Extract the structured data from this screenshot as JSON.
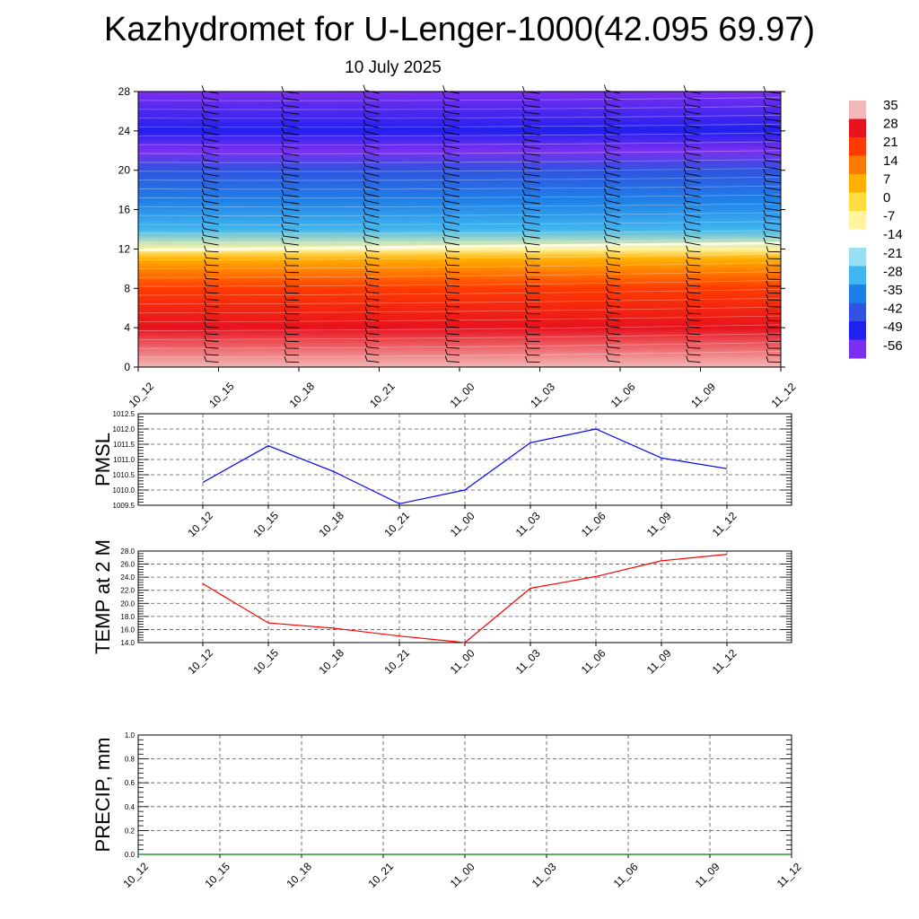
{
  "title": "Kazhydromet for U-Lenger-1000(42.095 69.97)",
  "subtitle": "10 July 2025",
  "chart_data": [
    {
      "type": "heatmap",
      "name": "temperature-cross-section",
      "x_ticks": [
        "10_12",
        "10_15",
        "10_18",
        "10_21",
        "11_00",
        "11_03",
        "11_06",
        "11_09",
        "11_12"
      ],
      "y_ticks": [
        0,
        4,
        8,
        12,
        16,
        20,
        24,
        28
      ],
      "ylim": [
        0,
        28
      ],
      "colorbar_labels": [
        "35",
        "28",
        "21",
        "14",
        "7",
        "0",
        "-7",
        "-14",
        "-21",
        "-28",
        "-35",
        "-42",
        "-49",
        "-56"
      ],
      "temperature_by_level": [
        {
          "level": 0,
          "value": 33
        },
        {
          "level": 4,
          "value": 26
        },
        {
          "level": 8,
          "value": 18
        },
        {
          "level": 11,
          "value": 8
        },
        {
          "level": 12,
          "value": -12
        },
        {
          "level": 14,
          "value": -28
        },
        {
          "level": 17,
          "value": -40
        },
        {
          "level": 20,
          "value": -48
        },
        {
          "level": 22,
          "value": -58
        },
        {
          "level": 24,
          "value": -55
        },
        {
          "level": 28,
          "value": -62
        }
      ],
      "wind_barbs": "present"
    },
    {
      "type": "line",
      "name": "pmsl",
      "ylabel": "PMSL",
      "categories": [
        "10_12",
        "10_15",
        "10_18",
        "10_21",
        "11_00",
        "11_03",
        "11_06",
        "11_09",
        "11_12"
      ],
      "values": [
        1010.25,
        1011.45,
        1010.6,
        1009.55,
        1010.0,
        1011.55,
        1012.0,
        1011.05,
        1010.7
      ],
      "y_ticks": [
        "1009.5",
        "1010.0",
        "1010.5",
        "1011.0",
        "1011.5",
        "1012.0",
        "1012.5"
      ],
      "ylim": [
        1009.5,
        1012.5
      ],
      "color": "#0000ff",
      "grid": true
    },
    {
      "type": "line",
      "name": "temp2m",
      "ylabel": "TEMP at 2 M",
      "categories": [
        "10_12",
        "10_15",
        "10_18",
        "10_21",
        "11_00",
        "11_03",
        "11_06",
        "11_09",
        "11_12"
      ],
      "values": [
        23.0,
        17.0,
        16.2,
        15.0,
        14.0,
        22.3,
        24.1,
        26.5,
        27.5
      ],
      "y_ticks": [
        "14.0",
        "16.0",
        "18.0",
        "20.0",
        "22.0",
        "24.0",
        "26.0",
        "28.0"
      ],
      "ylim": [
        14,
        28
      ],
      "color": "#ff0000",
      "grid": true
    },
    {
      "type": "line",
      "name": "precip",
      "ylabel": "PRECIP, mm",
      "categories": [
        "10_12",
        "10_15",
        "10_18",
        "10_21",
        "11_00",
        "11_03",
        "11_06",
        "11_09",
        "11_12"
      ],
      "values": [
        0,
        0,
        0,
        0,
        0,
        0,
        0,
        0,
        0
      ],
      "y_ticks": [
        "0.0",
        "0.2",
        "0.4",
        "0.6",
        "0.8",
        "1.0"
      ],
      "ylim": [
        0,
        1
      ],
      "color": "#008000",
      "grid": true
    }
  ],
  "colorbar_colors": [
    "#f2b8b8",
    "#e8121d",
    "#ff3a00",
    "#ff7a00",
    "#ffb000",
    "#ffdc40",
    "#fff5a0",
    "#ffffff",
    "#9ae0f5",
    "#3fb6ef",
    "#1f7fe8",
    "#2f53e0",
    "#2020f0",
    "#7b2ff0"
  ]
}
